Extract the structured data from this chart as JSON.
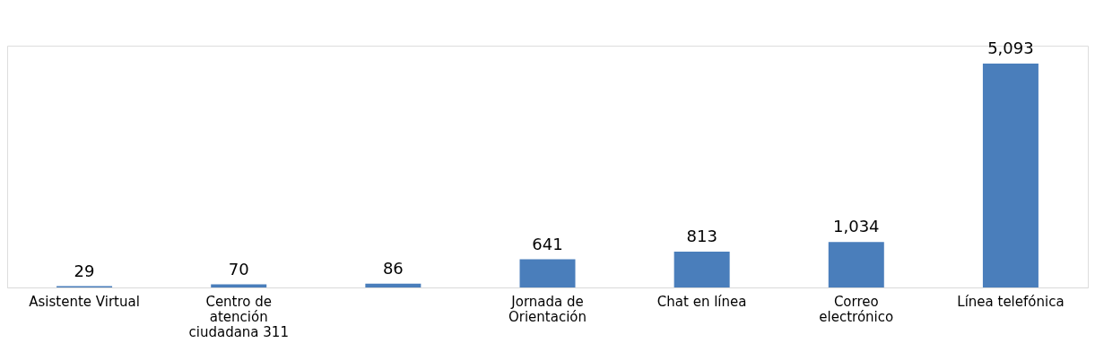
{
  "chart_data": {
    "type": "bar",
    "categories": [
      "Asistente Virtual",
      "Centro de atención ciudadana 311",
      null,
      "Jornada de Orientación",
      "Chat en línea",
      "Correo electrónico",
      "Línea telefónica"
    ],
    "values": [
      29,
      70,
      86,
      641,
      813,
      1034,
      5093
    ],
    "value_labels": [
      "29",
      "70",
      "86",
      "641",
      "813",
      "1,034",
      "5,093"
    ],
    "color": "#4a7ebb",
    "grid": false
  }
}
